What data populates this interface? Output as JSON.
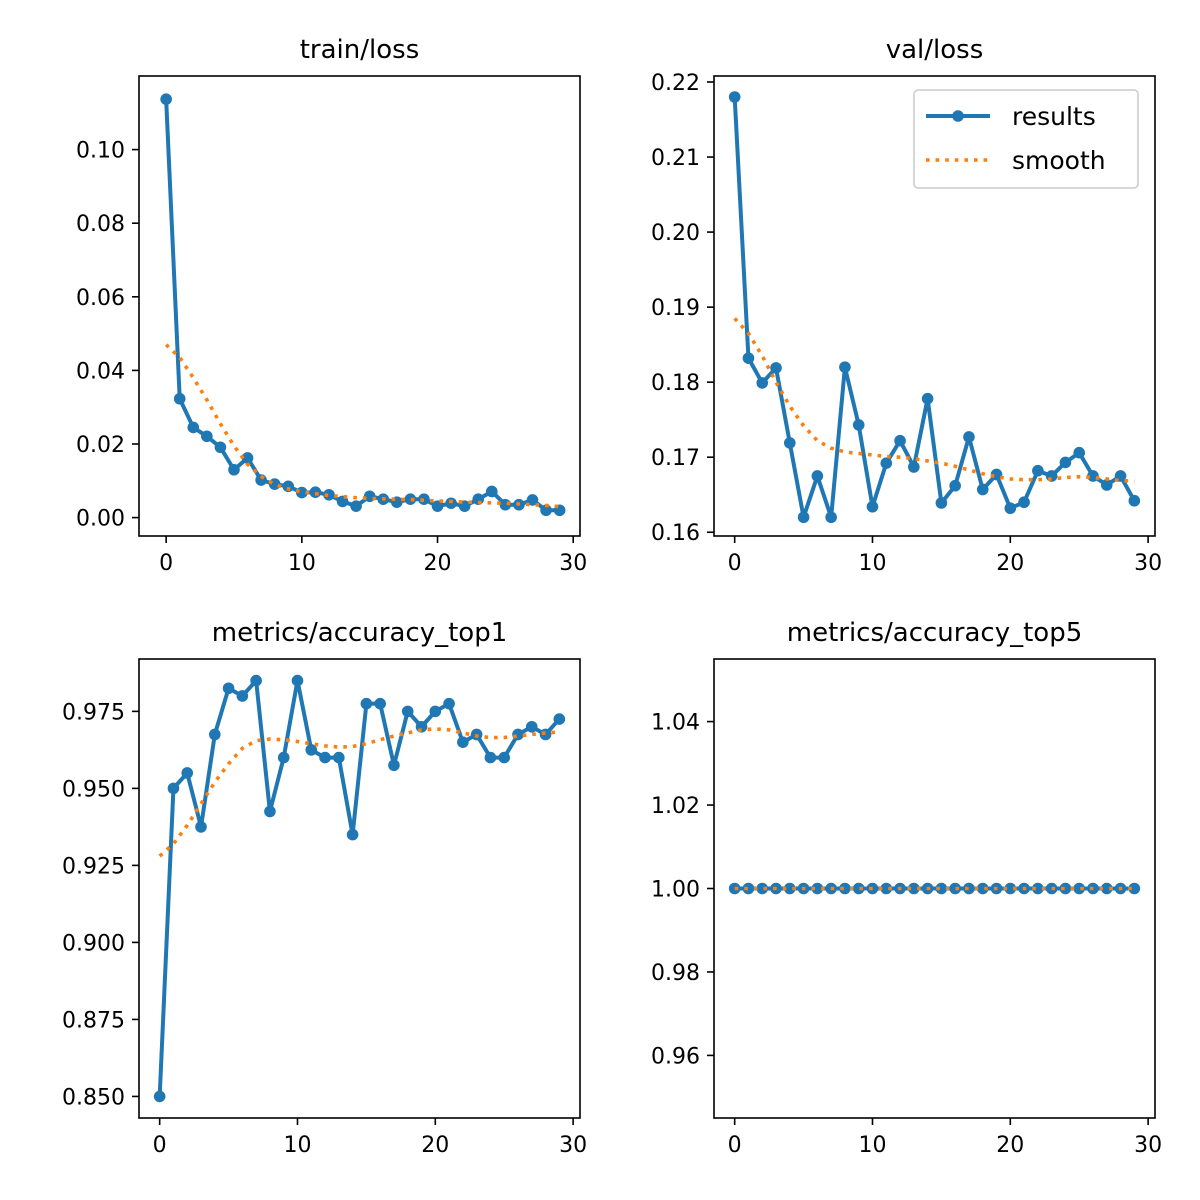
{
  "colors": {
    "results": "#1f77b4",
    "smooth": "#ff7f0e",
    "axis": "#000000"
  },
  "chart_data": [
    {
      "type": "line",
      "title": "train/loss",
      "xlim": [
        -2,
        30.5
      ],
      "ylim": [
        -0.005,
        0.12
      ],
      "xticks": [
        0,
        10,
        20,
        30
      ],
      "xtick_labels": [
        "0",
        "10",
        "20",
        "30"
      ],
      "yticks": [
        0.0,
        0.02,
        0.04,
        0.06,
        0.08,
        0.1
      ],
      "ytick_labels": [
        "0.00",
        "0.02",
        "0.04",
        "0.06",
        "0.08",
        "0.10"
      ],
      "x": [
        0,
        1,
        2,
        3,
        4,
        5,
        6,
        7,
        8,
        9,
        10,
        11,
        12,
        13,
        14,
        15,
        16,
        17,
        18,
        19,
        20,
        21,
        22,
        23,
        24,
        25,
        26,
        27,
        28,
        29
      ],
      "series": [
        {
          "name": "results",
          "style": "line-marker",
          "values": [
            0.1137,
            0.0323,
            0.0245,
            0.0221,
            0.0191,
            0.013,
            0.0162,
            0.0102,
            0.0091,
            0.0085,
            0.0068,
            0.0069,
            0.0062,
            0.0044,
            0.0031,
            0.0058,
            0.005,
            0.0042,
            0.005,
            0.005,
            0.0031,
            0.0039,
            0.0031,
            0.005,
            0.0071,
            0.0035,
            0.0035,
            0.0048,
            0.002,
            0.002
          ]
        },
        {
          "name": "smooth",
          "style": "dotted",
          "values": [
            0.047,
            0.0435,
            0.038,
            0.032,
            0.0255,
            0.0195,
            0.0145,
            0.0112,
            0.009,
            0.0078,
            0.007,
            0.0065,
            0.006,
            0.0057,
            0.0054,
            0.0052,
            0.0051,
            0.005,
            0.0049,
            0.0047,
            0.0045,
            0.0044,
            0.0042,
            0.0041,
            0.004,
            0.0039,
            0.0037,
            0.0035,
            0.0033,
            0.003
          ]
        }
      ]
    },
    {
      "type": "line",
      "title": "val/loss",
      "xlim": [
        -1.5,
        30.5
      ],
      "ylim": [
        0.1595,
        0.2208
      ],
      "xticks": [
        0,
        10,
        20,
        30
      ],
      "xtick_labels": [
        "0",
        "10",
        "20",
        "30"
      ],
      "yticks": [
        0.16,
        0.17,
        0.18,
        0.19,
        0.2,
        0.21,
        0.22
      ],
      "ytick_labels": [
        "0.16",
        "0.17",
        "0.18",
        "0.19",
        "0.20",
        "0.21",
        "0.22"
      ],
      "legend": {
        "position": "top-right",
        "entries": [
          "results",
          "smooth"
        ]
      },
      "x": [
        0,
        1,
        2,
        3,
        4,
        5,
        6,
        7,
        8,
        9,
        10,
        11,
        12,
        13,
        14,
        15,
        16,
        17,
        18,
        19,
        20,
        21,
        22,
        23,
        24,
        25,
        26,
        27,
        28,
        29
      ],
      "series": [
        {
          "name": "results",
          "style": "line-marker",
          "values": [
            0.218,
            0.1832,
            0.1799,
            0.1819,
            0.1719,
            0.162,
            0.1675,
            0.162,
            0.182,
            0.1743,
            0.1634,
            0.1692,
            0.1722,
            0.1687,
            0.1778,
            0.1639,
            0.1662,
            0.1727,
            0.1657,
            0.1677,
            0.1632,
            0.164,
            0.1682,
            0.1675,
            0.1693,
            0.1706,
            0.1675,
            0.1663,
            0.1675,
            0.1642
          ]
        },
        {
          "name": "smooth",
          "style": "dotted",
          "values": [
            0.1885,
            0.1865,
            0.1835,
            0.18,
            0.1768,
            0.1742,
            0.1722,
            0.1712,
            0.1707,
            0.1705,
            0.1703,
            0.1701,
            0.17,
            0.1698,
            0.1695,
            0.1692,
            0.1688,
            0.1683,
            0.1678,
            0.1674,
            0.1671,
            0.167,
            0.167,
            0.1671,
            0.1673,
            0.1674,
            0.1673,
            0.1671,
            0.1669,
            0.1668
          ]
        }
      ]
    },
    {
      "type": "line",
      "title": "metrics/accuracy_top1",
      "xlim": [
        -1.5,
        30.5
      ],
      "ylim": [
        0.843,
        0.992
      ],
      "xticks": [
        0,
        10,
        20,
        30
      ],
      "xtick_labels": [
        "0",
        "10",
        "20",
        "30"
      ],
      "yticks": [
        0.85,
        0.875,
        0.9,
        0.925,
        0.95,
        0.975
      ],
      "ytick_labels": [
        "0.850",
        "0.875",
        "0.900",
        "0.925",
        "0.950",
        "0.975"
      ],
      "x": [
        0,
        1,
        2,
        3,
        4,
        5,
        6,
        7,
        8,
        9,
        10,
        11,
        12,
        13,
        14,
        15,
        16,
        17,
        18,
        19,
        20,
        21,
        22,
        23,
        24,
        25,
        26,
        27,
        28,
        29
      ],
      "series": [
        {
          "name": "results",
          "style": "line-marker",
          "values": [
            0.85,
            0.95,
            0.955,
            0.9375,
            0.9675,
            0.9825,
            0.98,
            0.985,
            0.9425,
            0.96,
            0.985,
            0.9625,
            0.96,
            0.96,
            0.935,
            0.9775,
            0.9775,
            0.9575,
            0.975,
            0.97,
            0.975,
            0.9775,
            0.965,
            0.9675,
            0.96,
            0.96,
            0.9675,
            0.97,
            0.9675,
            0.9725
          ]
        },
        {
          "name": "smooth",
          "style": "dotted",
          "values": [
            0.928,
            0.932,
            0.938,
            0.945,
            0.952,
            0.958,
            0.963,
            0.9655,
            0.966,
            0.9658,
            0.9652,
            0.9645,
            0.9638,
            0.9634,
            0.9636,
            0.9645,
            0.9658,
            0.967,
            0.968,
            0.969,
            0.9693,
            0.969,
            0.968,
            0.967,
            0.9665,
            0.9665,
            0.967,
            0.9675,
            0.968,
            0.9683
          ]
        }
      ]
    },
    {
      "type": "line",
      "title": "metrics/accuracy_top5",
      "xlim": [
        -1.5,
        30.5
      ],
      "ylim": [
        0.945,
        1.055
      ],
      "xticks": [
        0,
        10,
        20,
        30
      ],
      "xtick_labels": [
        "0",
        "10",
        "20",
        "30"
      ],
      "yticks": [
        0.96,
        0.98,
        1.0,
        1.02,
        1.04
      ],
      "ytick_labels": [
        "0.96",
        "0.98",
        "1.00",
        "1.02",
        "1.04"
      ],
      "x": [
        0,
        1,
        2,
        3,
        4,
        5,
        6,
        7,
        8,
        9,
        10,
        11,
        12,
        13,
        14,
        15,
        16,
        17,
        18,
        19,
        20,
        21,
        22,
        23,
        24,
        25,
        26,
        27,
        28,
        29
      ],
      "series": [
        {
          "name": "results",
          "style": "line-marker",
          "values": [
            1,
            1,
            1,
            1,
            1,
            1,
            1,
            1,
            1,
            1,
            1,
            1,
            1,
            1,
            1,
            1,
            1,
            1,
            1,
            1,
            1,
            1,
            1,
            1,
            1,
            1,
            1,
            1,
            1,
            1
          ]
        },
        {
          "name": "smooth",
          "style": "dotted",
          "values": [
            1,
            1,
            1,
            1,
            1,
            1,
            1,
            1,
            1,
            1,
            1,
            1,
            1,
            1,
            1,
            1,
            1,
            1,
            1,
            1,
            1,
            1,
            1,
            1,
            1,
            1,
            1,
            1,
            1,
            1
          ]
        }
      ]
    }
  ]
}
